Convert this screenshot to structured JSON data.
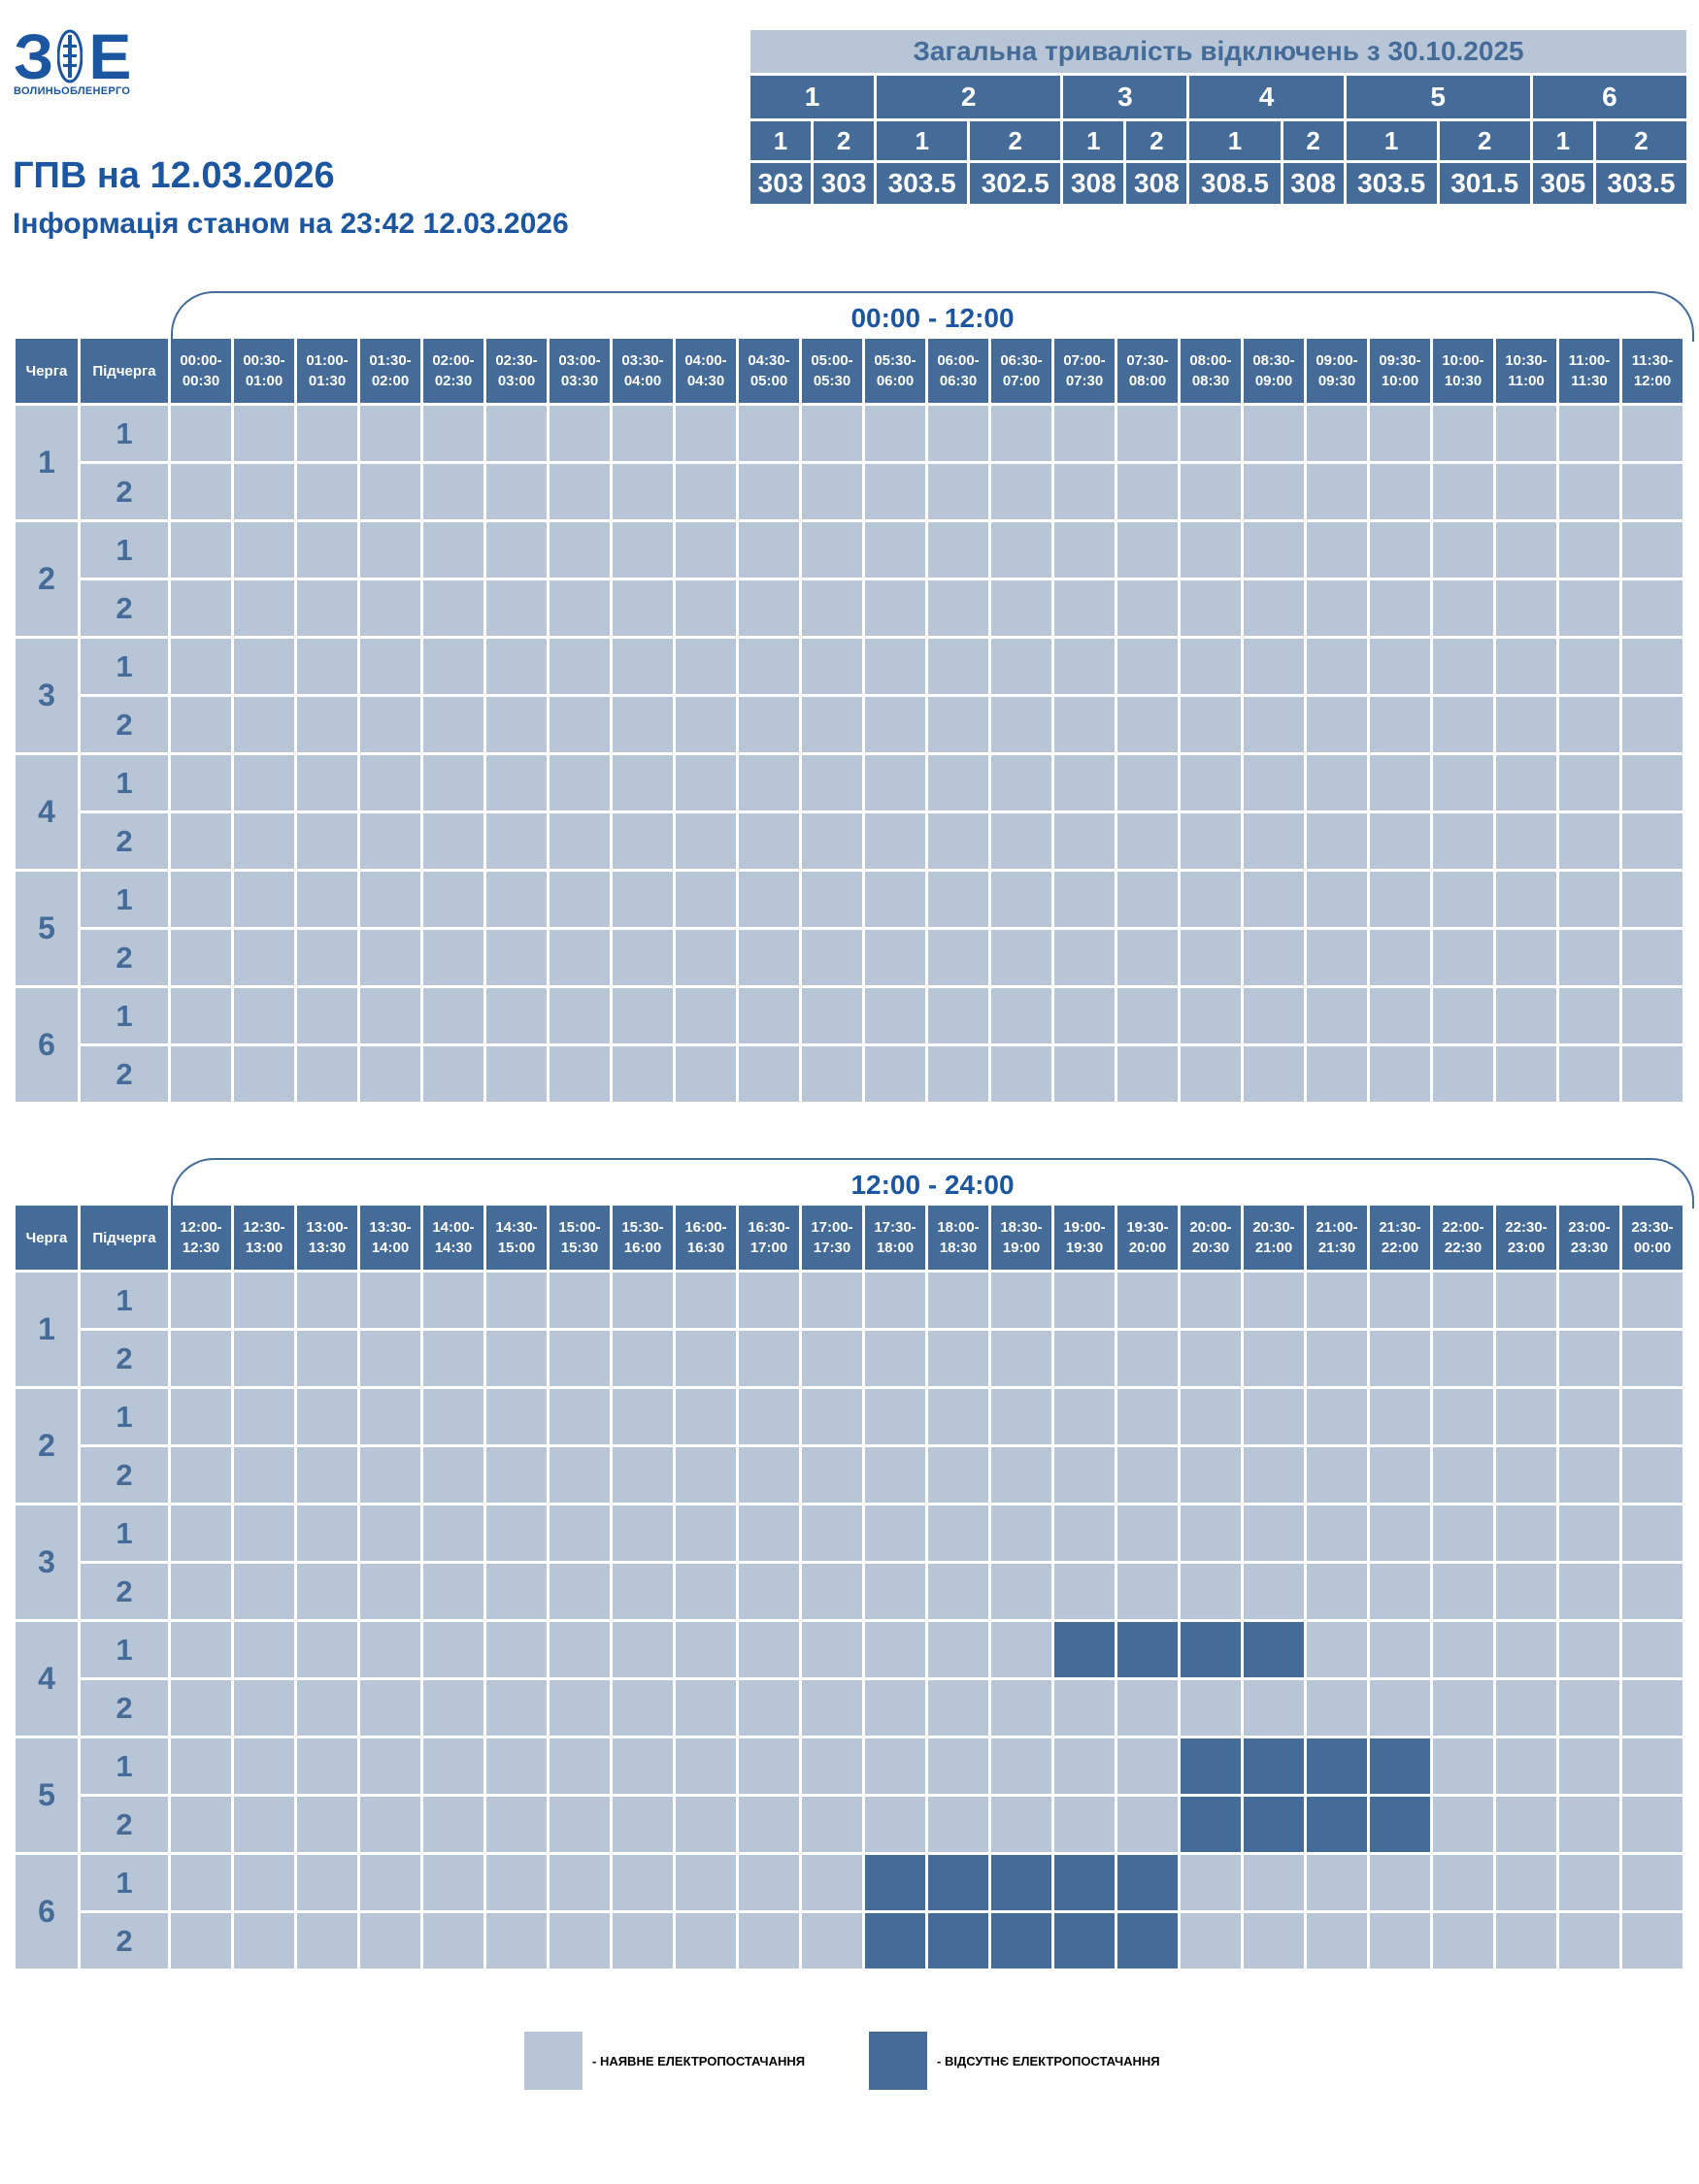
{
  "logo": {
    "text": "ВОЛИНЬОБЛЕНЕРГО",
    "mark": "ЗОЕ",
    "colors": {
      "brand": "#1d56a0"
    }
  },
  "header": {
    "title": "ГПВ на 12.03.2026",
    "subtitle": "Інформація станом на 23:42 12.03.2026"
  },
  "summary": {
    "title": "Загальна тривалість відключень з 30.10.2025",
    "queues": [
      "1",
      "2",
      "3",
      "4",
      "5",
      "6"
    ],
    "subqueues": [
      "1",
      "2",
      "1",
      "2",
      "1",
      "2",
      "1",
      "2",
      "1",
      "2",
      "1",
      "2"
    ],
    "values": [
      "303",
      "303",
      "303.5",
      "302.5",
      "308",
      "308",
      "308.5",
      "308",
      "303.5",
      "301.5",
      "305",
      "303.5"
    ]
  },
  "colors": {
    "available": "#b7c5d6",
    "absent": "#456c98",
    "text_dark": "#1d56a0"
  },
  "labels": {
    "queue": "Черга",
    "subqueue": "Підчерга"
  },
  "periods": [
    {
      "label": "00:00 - 12:00",
      "slots": [
        "00:00-00:30",
        "00:30-01:00",
        "01:00-01:30",
        "01:30-02:00",
        "02:00-02:30",
        "02:30-03:00",
        "03:00-03:30",
        "03:30-04:00",
        "04:00-04:30",
        "04:30-05:00",
        "05:00-05:30",
        "05:30-06:00",
        "06:00-06:30",
        "06:30-07:00",
        "07:00-07:30",
        "07:30-08:00",
        "08:00-08:30",
        "08:30-09:00",
        "09:00-09:30",
        "09:30-10:00",
        "10:00-10:30",
        "10:30-11:00",
        "11:00-11:30",
        "11:30-12:00"
      ],
      "rows": [
        {
          "queue": "1",
          "sub": "1",
          "off": []
        },
        {
          "queue": "1",
          "sub": "2",
          "off": []
        },
        {
          "queue": "2",
          "sub": "1",
          "off": []
        },
        {
          "queue": "2",
          "sub": "2",
          "off": []
        },
        {
          "queue": "3",
          "sub": "1",
          "off": []
        },
        {
          "queue": "3",
          "sub": "2",
          "off": []
        },
        {
          "queue": "4",
          "sub": "1",
          "off": []
        },
        {
          "queue": "4",
          "sub": "2",
          "off": []
        },
        {
          "queue": "5",
          "sub": "1",
          "off": []
        },
        {
          "queue": "5",
          "sub": "2",
          "off": []
        },
        {
          "queue": "6",
          "sub": "1",
          "off": []
        },
        {
          "queue": "6",
          "sub": "2",
          "off": []
        }
      ]
    },
    {
      "label": "12:00 - 24:00",
      "slots": [
        "12:00-12:30",
        "12:30-13:00",
        "13:00-13:30",
        "13:30-14:00",
        "14:00-14:30",
        "14:30-15:00",
        "15:00-15:30",
        "15:30-16:00",
        "16:00-16:30",
        "16:30-17:00",
        "17:00-17:30",
        "17:30-18:00",
        "18:00-18:30",
        "18:30-19:00",
        "19:00-19:30",
        "19:30-20:00",
        "20:00-20:30",
        "20:30-21:00",
        "21:00-21:30",
        "21:30-22:00",
        "22:00-22:30",
        "22:30-23:00",
        "23:00-23:30",
        "23:30-00:00"
      ],
      "rows": [
        {
          "queue": "1",
          "sub": "1",
          "off": []
        },
        {
          "queue": "1",
          "sub": "2",
          "off": []
        },
        {
          "queue": "2",
          "sub": "1",
          "off": []
        },
        {
          "queue": "2",
          "sub": "2",
          "off": []
        },
        {
          "queue": "3",
          "sub": "1",
          "off": []
        },
        {
          "queue": "3",
          "sub": "2",
          "off": []
        },
        {
          "queue": "4",
          "sub": "1",
          "off": [
            "19:00-19:30",
            "19:30-20:00",
            "20:00-20:30",
            "20:30-21:00"
          ]
        },
        {
          "queue": "4",
          "sub": "2",
          "off": []
        },
        {
          "queue": "5",
          "sub": "1",
          "off": [
            "20:00-20:30",
            "20:30-21:00",
            "21:00-21:30",
            "21:30-22:00"
          ]
        },
        {
          "queue": "5",
          "sub": "2",
          "off": [
            "20:00-20:30",
            "20:30-21:00",
            "21:00-21:30",
            "21:30-22:00"
          ]
        },
        {
          "queue": "6",
          "sub": "1",
          "off": [
            "17:30-18:00",
            "18:00-18:30",
            "18:30-19:00",
            "19:00-19:30",
            "19:30-20:00"
          ]
        },
        {
          "queue": "6",
          "sub": "2",
          "off": [
            "17:30-18:00",
            "18:00-18:30",
            "18:30-19:00",
            "19:00-19:30",
            "19:30-20:00"
          ]
        }
      ]
    }
  ],
  "legend": {
    "available": "- НАЯВНЕ ЕЛЕКТРОПОСТАЧАННЯ",
    "absent": "- ВІДСУТНЄ ЕЛЕКТРОПОСТАЧАННЯ"
  }
}
